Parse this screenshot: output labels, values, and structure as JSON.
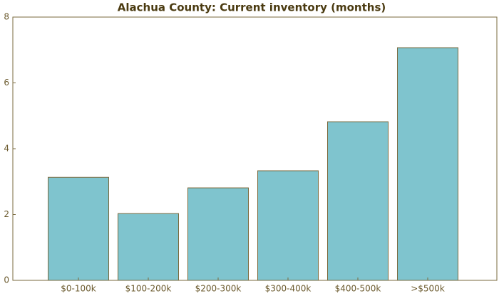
{
  "chart_data": {
    "type": "bar",
    "title": "Alachua County: Current inventory (months)",
    "categories": [
      "$0-100k",
      "$100-200k",
      "$200-300k",
      "$300-400k",
      "$400-500k",
      ">$500k"
    ],
    "values": [
      3.13,
      2.03,
      2.81,
      3.33,
      4.82,
      7.07
    ],
    "color": "#7fc4ce",
    "ylim": [
      0,
      8
    ],
    "yticks": [
      0,
      2,
      4,
      6,
      8
    ],
    "grid": false
  }
}
